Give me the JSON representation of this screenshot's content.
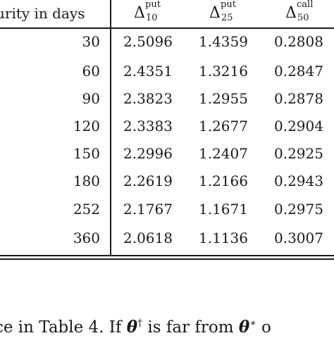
{
  "table": {
    "header": {
      "maturity": "urity in days",
      "delta_symbol": "Δ",
      "col1": {
        "sup": "put",
        "sub": "10"
      },
      "col2": {
        "sup": "put",
        "sub": "25"
      },
      "col3": {
        "sup": "call",
        "sub": "50"
      }
    },
    "rows": [
      {
        "days": "30",
        "d10": "2.5096",
        "d25": "1.4359",
        "d50": "0.2808"
      },
      {
        "days": "60",
        "d10": "2.4351",
        "d25": "1.3216",
        "d50": "0.2847"
      },
      {
        "days": "90",
        "d10": "2.3823",
        "d25": "1.2955",
        "d50": "0.2878"
      },
      {
        "days": "120",
        "d10": "2.3383",
        "d25": "1.2677",
        "d50": "0.2904"
      },
      {
        "days": "150",
        "d10": "2.2996",
        "d25": "1.2407",
        "d50": "0.2925"
      },
      {
        "days": "180",
        "d10": "2.2619",
        "d25": "1.2166",
        "d50": "0.2943"
      },
      {
        "days": "252",
        "d10": "2.1767",
        "d25": "1.1671",
        "d50": "0.2975"
      },
      {
        "days": "360",
        "d10": "2.0618",
        "d25": "1.1136",
        "d50": "0.3007"
      }
    ]
  },
  "caption": {
    "part1": "ce in Table 4.  If ",
    "theta1": "θ",
    "dagger": "†",
    "part2": " is far from ",
    "theta2": "θ",
    "star": "∗",
    "part3": " o"
  }
}
